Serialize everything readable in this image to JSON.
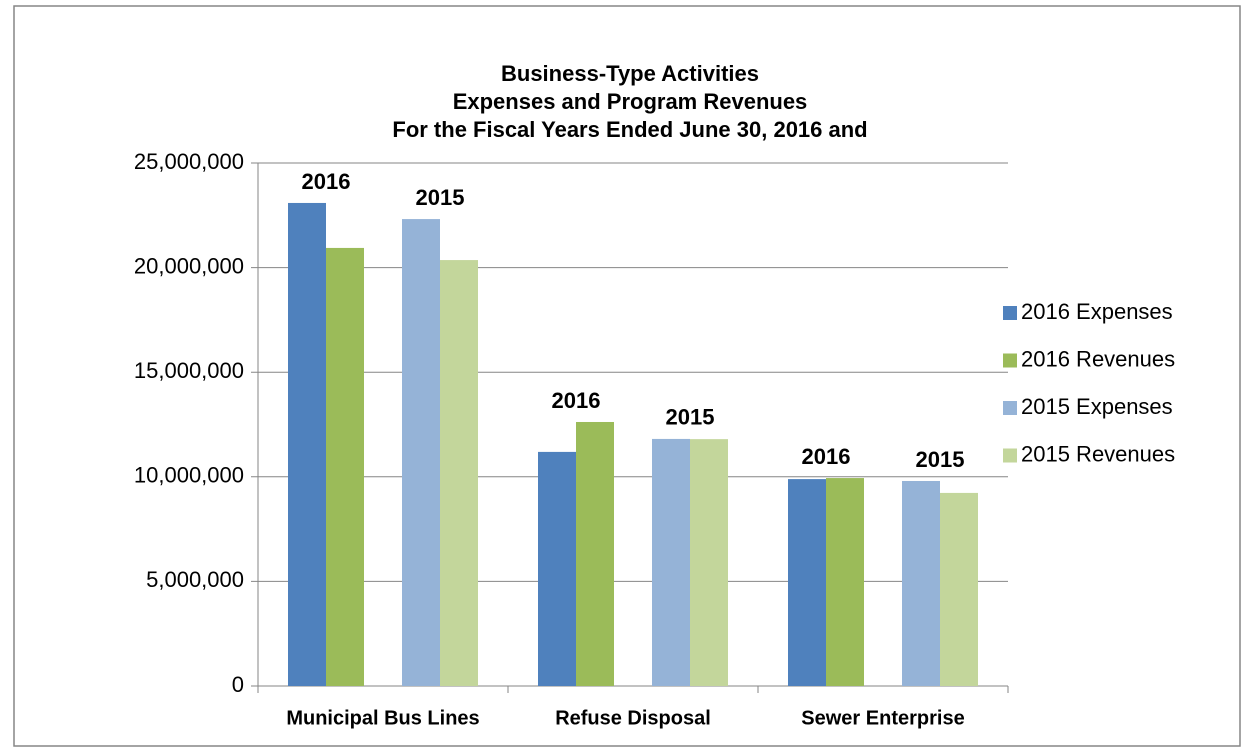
{
  "chart_data": {
    "type": "bar",
    "title": [
      "Business-Type Activities",
      "Expenses and Program Revenues",
      "For the Fiscal Years Ended June 30, 2016 and"
    ],
    "categories": [
      "Municipal Bus Lines",
      "Refuse Disposal",
      "Sewer Enterprise"
    ],
    "series": [
      {
        "name": "2016 Expenses",
        "color": "#4f81bd",
        "values": [
          23090000,
          11190000,
          9890000
        ]
      },
      {
        "name": "2016 Revenues",
        "color": "#9bbb59",
        "values": [
          20940000,
          12620000,
          9940000
        ]
      },
      {
        "name": "2015 Expenses",
        "color": "#95b3d7",
        "values": [
          22320000,
          11810000,
          9800000
        ]
      },
      {
        "name": "2015 Revenues",
        "color": "#c3d69b",
        "values": [
          20360000,
          11800000,
          9230000
        ]
      }
    ],
    "annotations": [
      "2016",
      "2015",
      "2016",
      "2015",
      "2016",
      "2015"
    ],
    "ylim": [
      0,
      25000000
    ],
    "yticks": [
      0,
      {
        "value": 5000000,
        "label": "5,000,000"
      },
      {
        "value": 10000000,
        "label": "10,000,000"
      },
      {
        "value": 15000000,
        "label": "15,000,000"
      },
      {
        "value": 20000000,
        "label": "20,000,000"
      },
      {
        "value": 25000000,
        "label": "25,000,000"
      }
    ],
    "grid": true,
    "legend": "right"
  }
}
